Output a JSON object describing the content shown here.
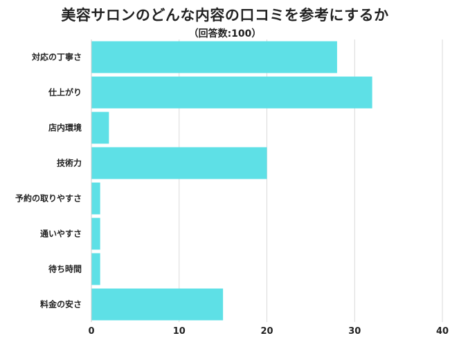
{
  "chart_data": {
    "type": "bar",
    "orientation": "horizontal",
    "title": "美容サロンのどんな内容の口コミを参考にするか",
    "subtitle": "（回答数:100）",
    "categories": [
      "対応の丁寧さ",
      "仕上がり",
      "店内環境",
      "技術力",
      "予約の取りやすさ",
      "通いやすさ",
      "待ち時間",
      "料金の安さ"
    ],
    "values": [
      28,
      32,
      2,
      20,
      1,
      1,
      1,
      15
    ],
    "xlim": [
      0,
      40
    ],
    "xticks": [
      "0",
      "10",
      "20",
      "30",
      "40"
    ],
    "grid": true,
    "bar_color": "#5ee0e6"
  }
}
